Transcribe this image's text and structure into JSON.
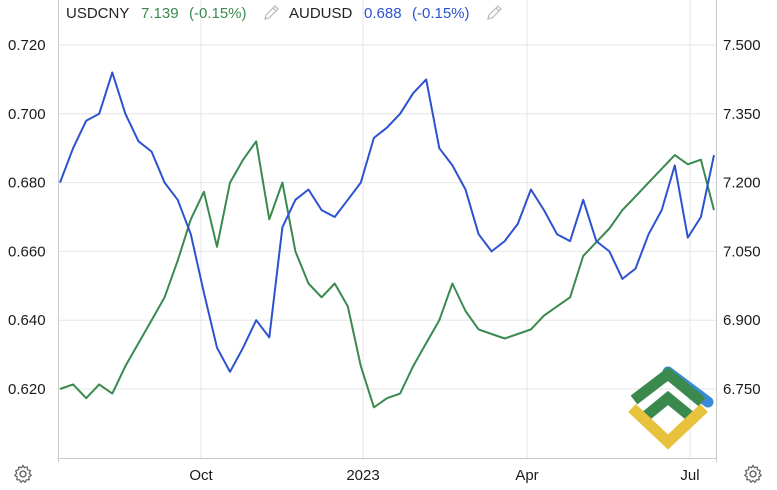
{
  "chart_data": {
    "type": "line",
    "x_ticks": [
      "Oct",
      "2023",
      "Apr",
      "Jul"
    ],
    "y_left_ticks": [
      "0.720",
      "0.700",
      "0.680",
      "0.660",
      "0.640",
      "0.620"
    ],
    "y_left_range": [
      0.605,
      0.725
    ],
    "y_right_ticks": [
      "7.500",
      "7.350",
      "7.200",
      "7.050",
      "6.900",
      "6.750"
    ],
    "y_right_range": [
      6.65,
      7.55
    ],
    "grid": true,
    "legend_position": "top-left",
    "series": [
      {
        "name": "USDCNY",
        "last": "7.139",
        "change": "(-0.15%)",
        "color": "#3a8a4e",
        "axis": "right",
        "x": [
          0,
          0.02,
          0.04,
          0.06,
          0.08,
          0.1,
          0.12,
          0.14,
          0.16,
          0.18,
          0.2,
          0.22,
          0.24,
          0.26,
          0.28,
          0.3,
          0.32,
          0.34,
          0.36,
          0.38,
          0.4,
          0.42,
          0.44,
          0.46,
          0.48,
          0.5,
          0.52,
          0.54,
          0.56,
          0.58,
          0.6,
          0.62,
          0.64,
          0.66,
          0.68,
          0.7,
          0.72,
          0.74,
          0.76,
          0.78,
          0.8,
          0.82,
          0.84,
          0.86,
          0.88,
          0.9,
          0.92,
          0.94,
          0.96,
          0.98,
          1.0
        ],
        "values": [
          6.75,
          6.76,
          6.73,
          6.76,
          6.74,
          6.8,
          6.85,
          6.9,
          6.95,
          7.03,
          7.12,
          7.18,
          7.06,
          7.2,
          7.25,
          7.29,
          7.12,
          7.2,
          7.05,
          6.98,
          6.95,
          6.98,
          6.93,
          6.8,
          6.71,
          6.73,
          6.74,
          6.8,
          6.85,
          6.9,
          6.98,
          6.92,
          6.88,
          6.87,
          6.86,
          6.87,
          6.88,
          6.91,
          6.93,
          6.95,
          7.04,
          7.07,
          7.1,
          7.14,
          7.17,
          7.2,
          7.23,
          7.26,
          7.24,
          7.25,
          7.14
        ]
      },
      {
        "name": "AUDUSD",
        "last": "0.688",
        "change": "(-0.15%)",
        "color": "#2d52cf",
        "axis": "left",
        "x": [
          0,
          0.02,
          0.04,
          0.06,
          0.08,
          0.1,
          0.12,
          0.14,
          0.16,
          0.18,
          0.2,
          0.22,
          0.24,
          0.26,
          0.28,
          0.3,
          0.32,
          0.34,
          0.36,
          0.38,
          0.4,
          0.42,
          0.44,
          0.46,
          0.48,
          0.5,
          0.52,
          0.54,
          0.56,
          0.58,
          0.6,
          0.62,
          0.64,
          0.66,
          0.68,
          0.7,
          0.72,
          0.74,
          0.76,
          0.78,
          0.8,
          0.82,
          0.84,
          0.86,
          0.88,
          0.9,
          0.92,
          0.94,
          0.96,
          0.98,
          1.0
        ],
        "values": [
          0.68,
          0.69,
          0.698,
          0.7,
          0.712,
          0.7,
          0.692,
          0.689,
          0.68,
          0.675,
          0.665,
          0.648,
          0.632,
          0.625,
          0.632,
          0.64,
          0.635,
          0.667,
          0.675,
          0.678,
          0.672,
          0.67,
          0.675,
          0.68,
          0.693,
          0.696,
          0.7,
          0.706,
          0.71,
          0.69,
          0.685,
          0.678,
          0.665,
          0.66,
          0.663,
          0.668,
          0.678,
          0.672,
          0.665,
          0.663,
          0.675,
          0.663,
          0.66,
          0.652,
          0.655,
          0.665,
          0.672,
          0.685,
          0.664,
          0.67,
          0.688
        ]
      }
    ]
  },
  "icons": {
    "edit": "pencil-icon",
    "settings": "gear-icon",
    "logo": "brand-logo"
  }
}
